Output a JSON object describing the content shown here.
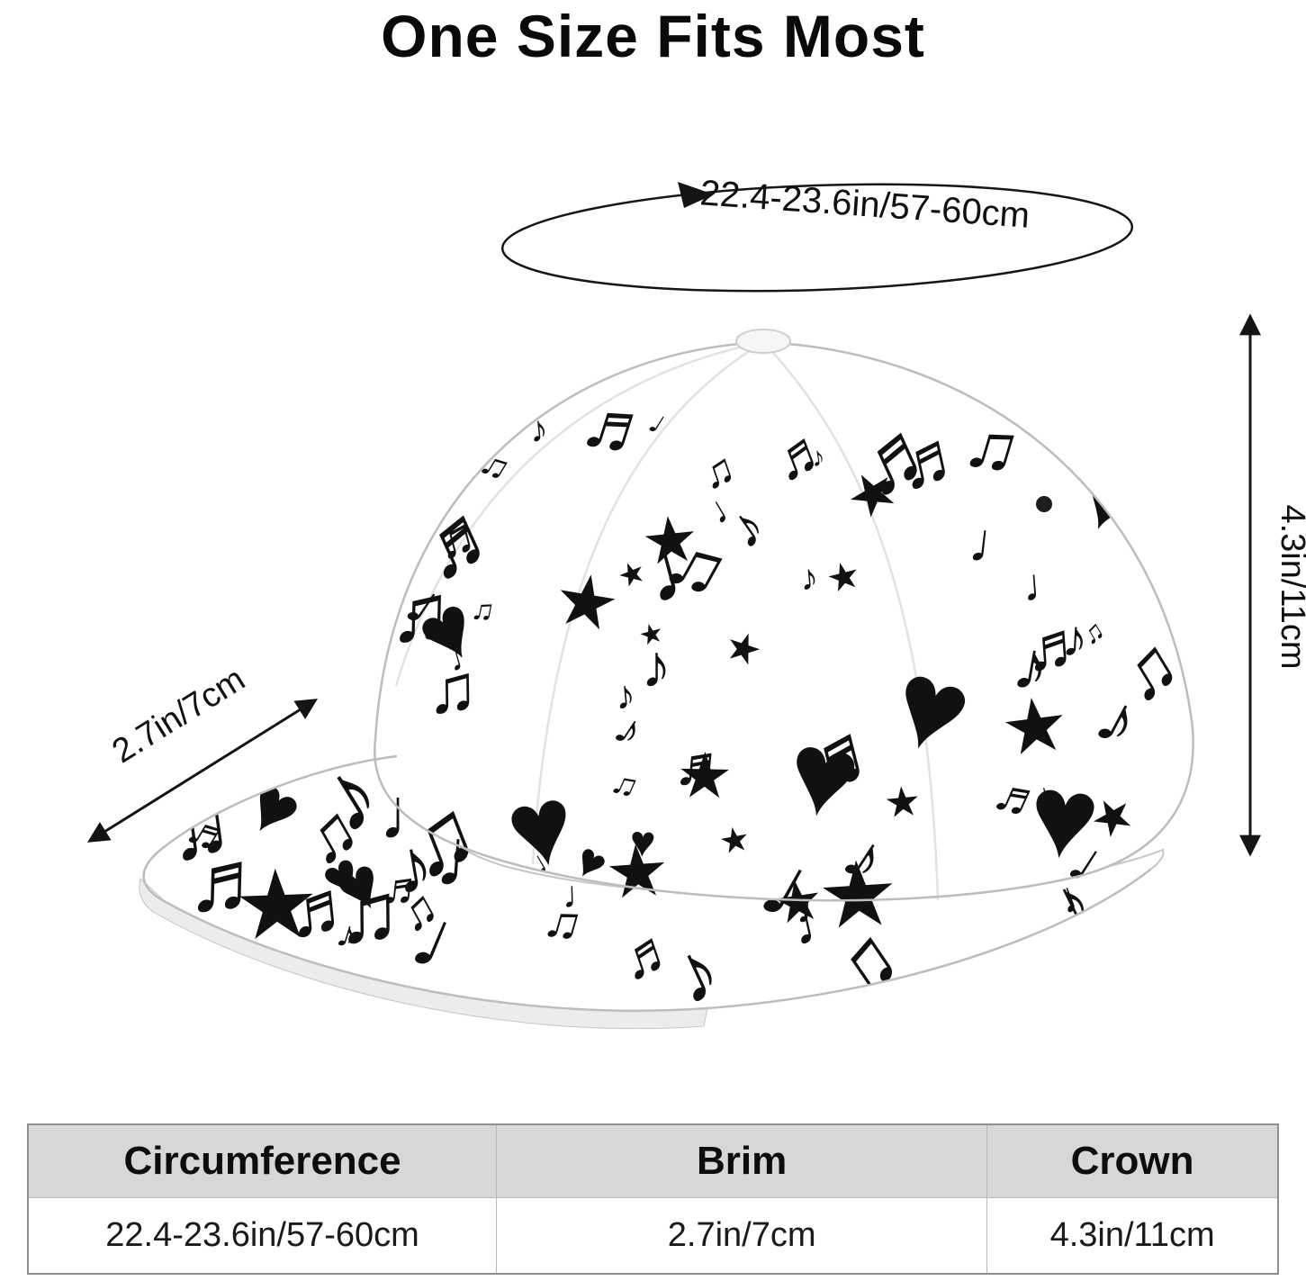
{
  "title": "One Size Fits Most",
  "annotations": {
    "circumference": "22.4-23.6in/57-60cm",
    "brim": "2.7in/7cm",
    "crown": "4.3in/11cm"
  },
  "size_table": {
    "headers": [
      "Circumference",
      "Brim",
      "Crown"
    ],
    "values": [
      "22.4-23.6in/57-60cm",
      "2.7in/7cm",
      "4.3in/11cm"
    ]
  },
  "hat_pattern": {
    "symbols": [
      "♥",
      "♪",
      "♫",
      "♬",
      "♩",
      "★"
    ],
    "gradient_ids": [
      "rg0",
      "rg1",
      "rg2",
      "rg3",
      "rg4"
    ],
    "gradients": [
      [
        "#ff1744",
        "#ff9100",
        "#ffea00",
        "#00c853"
      ],
      [
        "#aa00ff",
        "#2962ff",
        "#00e5ff"
      ],
      [
        "#ff1744",
        "#d500f9",
        "#651fff"
      ],
      [
        "#00e676",
        "#00b0ff",
        "#7c4dff"
      ],
      [
        "#ff6d00",
        "#ff4081",
        "#ffd600"
      ]
    ]
  },
  "colors": {
    "annotation": "#141414",
    "table_header_bg": "#d7d7d7",
    "table_border": "#8f8f8f",
    "hat_outline": "#c6c6c6",
    "eyelet": "#1c1c1c"
  }
}
